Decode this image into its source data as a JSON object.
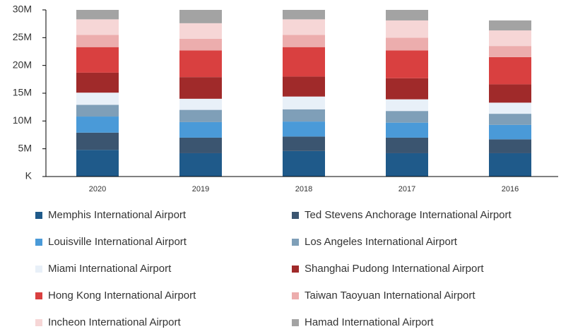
{
  "chart_data": {
    "type": "stacked_bar",
    "categories": [
      "2020",
      "2019",
      "2018",
      "2017",
      "2016"
    ],
    "ylim": [
      0,
      30000000
    ],
    "yticks": [
      {
        "value": 0,
        "label": "K"
      },
      {
        "value": 5000000,
        "label": "5M"
      },
      {
        "value": 10000000,
        "label": "10M"
      },
      {
        "value": 15000000,
        "label": "15M"
      },
      {
        "value": 20000000,
        "label": "20M"
      },
      {
        "value": 25000000,
        "label": "25M"
      },
      {
        "value": 30000000,
        "label": "30M"
      }
    ],
    "series": [
      {
        "name": "Memphis International Airport",
        "color": "#1f5a8a",
        "values": [
          4800000,
          4200000,
          4600000,
          4200000,
          4200000
        ]
      },
      {
        "name": "Ted Stevens Anchorage International Airport",
        "color": "#3b5570",
        "values": [
          3100000,
          2800000,
          2600000,
          2800000,
          2500000
        ]
      },
      {
        "name": "Louisville International Airport",
        "color": "#4a9ad8",
        "values": [
          2900000,
          2800000,
          2700000,
          2700000,
          2600000
        ]
      },
      {
        "name": "Los Angeles International Airport",
        "color": "#7f9fb8",
        "values": [
          2100000,
          2200000,
          2200000,
          2100000,
          2000000
        ]
      },
      {
        "name": "Miami International Airport",
        "color": "#e8f0f8",
        "values": [
          2200000,
          2000000,
          2300000,
          2100000,
          2000000
        ]
      },
      {
        "name": "Shanghai Pudong International Airport",
        "color": "#a02a2a",
        "values": [
          3600000,
          3900000,
          3600000,
          3800000,
          3300000
        ]
      },
      {
        "name": "Hong Kong International Airport",
        "color": "#d94040",
        "values": [
          4600000,
          4800000,
          5300000,
          5000000,
          4900000
        ]
      },
      {
        "name": "Taiwan Taoyuan International Airport",
        "color": "#ecadad",
        "values": [
          2200000,
          2100000,
          2200000,
          2300000,
          2000000
        ]
      },
      {
        "name": "Incheon International Airport",
        "color": "#f6d6d6",
        "values": [
          2800000,
          2800000,
          2800000,
          3100000,
          2800000
        ]
      },
      {
        "name": "Hamad International Airport",
        "color": "#a3a3a3",
        "values": [
          1700000,
          2400000,
          1700000,
          1900000,
          1800000
        ]
      }
    ]
  }
}
